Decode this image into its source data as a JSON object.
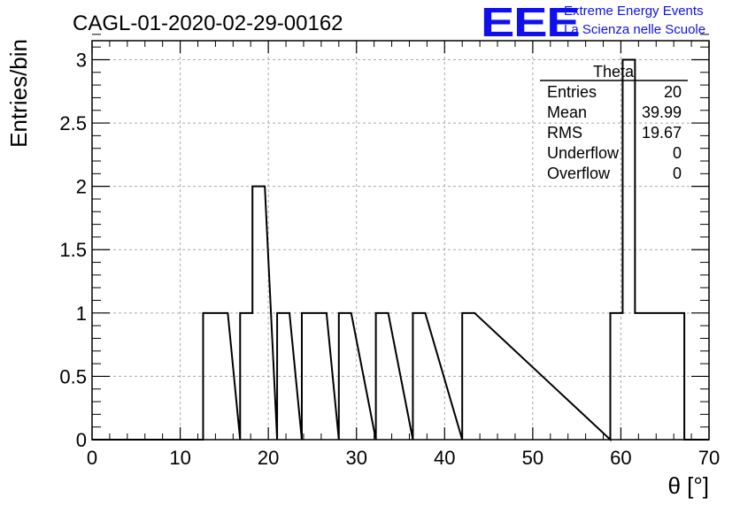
{
  "chart_data": {
    "type": "histogram",
    "title": "CAGL-01-2020-02-29-00162",
    "xlabel": "θ [°]",
    "ylabel": "Entries/bin",
    "xlim": [
      0,
      70
    ],
    "ylim": [
      0,
      3.15
    ],
    "bin_width": 1.4,
    "xticks": [
      "0",
      "10",
      "20",
      "30",
      "40",
      "50",
      "60",
      "70"
    ],
    "yticks": [
      "0",
      "0.5",
      "1",
      "1.5",
      "2",
      "2.5",
      "3"
    ],
    "grid": true,
    "bins": [
      {
        "x0": 12.6,
        "x1": 14.0,
        "value": 1
      },
      {
        "x0": 14.0,
        "x1": 15.4,
        "value": 1
      },
      {
        "x0": 16.8,
        "x1": 18.2,
        "value": 1
      },
      {
        "x0": 18.2,
        "x1": 19.6,
        "value": 2
      },
      {
        "x0": 21.0,
        "x1": 22.4,
        "value": 1
      },
      {
        "x0": 23.8,
        "x1": 25.2,
        "value": 1
      },
      {
        "x0": 25.2,
        "x1": 26.6,
        "value": 1
      },
      {
        "x0": 28.0,
        "x1": 29.4,
        "value": 1
      },
      {
        "x0": 32.2,
        "x1": 33.6,
        "value": 1
      },
      {
        "x0": 36.4,
        "x1": 37.8,
        "value": 1
      },
      {
        "x0": 42.0,
        "x1": 43.4,
        "value": 1
      },
      {
        "x0": 58.8,
        "x1": 60.2,
        "value": 1
      },
      {
        "x0": 60.2,
        "x1": 61.6,
        "value": 3
      },
      {
        "x0": 61.6,
        "x1": 63.0,
        "value": 1
      },
      {
        "x0": 63.0,
        "x1": 64.4,
        "value": 1
      },
      {
        "x0": 64.4,
        "x1": 65.8,
        "value": 1
      },
      {
        "x0": 65.8,
        "x1": 67.2,
        "value": 1
      }
    ],
    "stats_box": {
      "title": "Theta",
      "rows": [
        {
          "label": "Entries",
          "value": "20"
        },
        {
          "label": "Mean",
          "value": "39.99"
        },
        {
          "label": "RMS",
          "value": "19.67"
        },
        {
          "label": "Underflow",
          "value": "0"
        },
        {
          "label": "Overflow",
          "value": "0"
        }
      ]
    }
  },
  "logo": {
    "mark": "EEE",
    "line1": "Extreme Energy Events",
    "line2": "La Scienza nelle Scuole",
    "color": "#1010ee"
  }
}
